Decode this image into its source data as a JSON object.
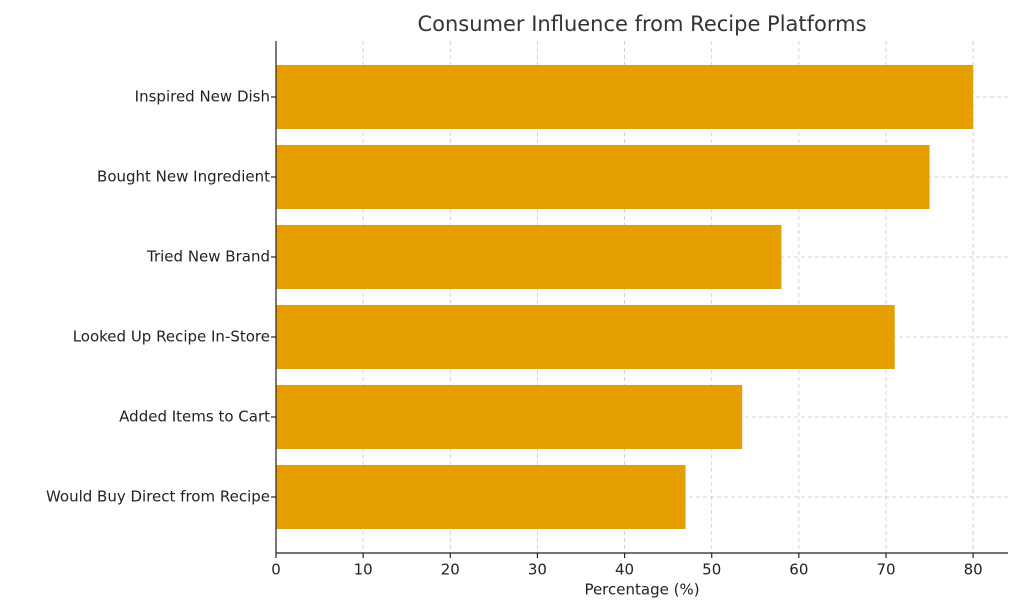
{
  "chart_data": {
    "type": "hbar",
    "title": "Consumer Influence from Recipe Platforms",
    "x_label": "Percentage (%)",
    "categories": [
      "Inspired New Dish",
      "Bought New Ingredient",
      "Tried New Brand",
      "Looked Up Recipe In-Store",
      "Added Items to Cart",
      "Would Buy Direct from Recipe"
    ],
    "values": [
      80,
      75,
      58,
      71,
      53.5,
      47
    ],
    "color": "#e69f00",
    "xlim": [
      0,
      84
    ],
    "xticks": [
      0,
      10,
      20,
      30,
      40,
      50,
      60,
      70,
      80
    ],
    "grid": true
  }
}
